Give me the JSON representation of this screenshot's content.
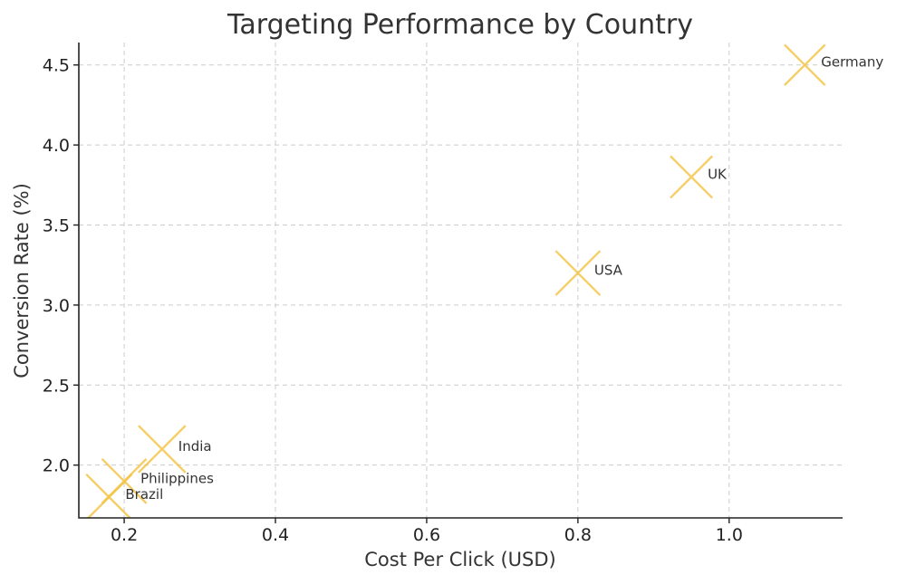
{
  "chart_data": {
    "type": "scatter",
    "title": "Targeting Performance by Country",
    "xlabel": "Cost Per Click (USD)",
    "ylabel": "Conversion Rate (%)",
    "xlim": [
      0.14,
      1.15
    ],
    "ylim": [
      1.67,
      4.64
    ],
    "x_ticks": [
      0.2,
      0.4,
      0.6,
      0.8,
      1.0
    ],
    "x_tick_labels": [
      "0.2",
      "0.4",
      "0.6",
      "0.8",
      "1.0"
    ],
    "y_ticks": [
      2.0,
      2.5,
      3.0,
      3.5,
      4.0,
      4.5
    ],
    "y_tick_labels": [
      "2.0",
      "2.5",
      "3.0",
      "3.5",
      "4.0",
      "4.5"
    ],
    "grid": true,
    "marker": "x",
    "marker_color": "#f5c342",
    "points": [
      {
        "label": "Germany",
        "x": 1.1,
        "y": 4.5,
        "size": 0.6
      },
      {
        "label": "UK",
        "x": 0.95,
        "y": 3.8,
        "size": 0.65
      },
      {
        "label": "USA",
        "x": 0.8,
        "y": 3.2,
        "size": 0.75
      },
      {
        "label": "India",
        "x": 0.25,
        "y": 2.1,
        "size": 0.85
      },
      {
        "label": "Philippines",
        "x": 0.2,
        "y": 1.9,
        "size": 0.75
      },
      {
        "label": "Brazil",
        "x": 0.18,
        "y": 1.8,
        "size": 0.8
      }
    ]
  }
}
